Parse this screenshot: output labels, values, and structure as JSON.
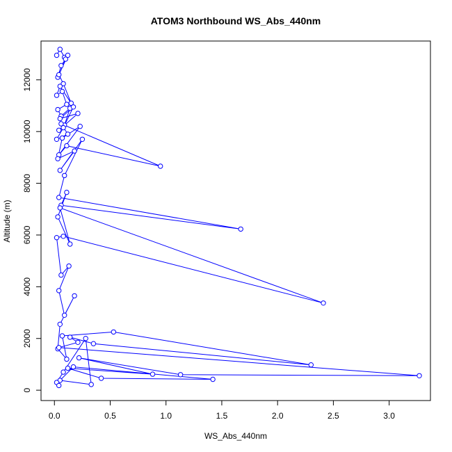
{
  "chart_data": {
    "type": "line",
    "title": "ATOM3 Northbound WS_Abs_440nm",
    "xlabel": "WS_Abs_440nm",
    "ylabel": "Altitude (m)",
    "xlim": [
      -0.12,
      3.37
    ],
    "ylim": [
      -400,
      13500
    ],
    "xticks": [
      "0.0",
      "0.5",
      "1.0",
      "1.5",
      "2.0",
      "2.5",
      "3.0"
    ],
    "xtick_values": [
      0,
      0.5,
      1,
      1.5,
      2,
      2.5,
      3
    ],
    "yticks": [
      "0",
      "2000",
      "4000",
      "6000",
      "8000",
      "10000",
      "12000"
    ],
    "ytick_values": [
      0,
      2000,
      4000,
      6000,
      8000,
      10000,
      12000
    ],
    "grid": false,
    "legend": "none",
    "marker": "open-circle",
    "series_color": "#0000ff",
    "series": [
      {
        "x": [
          0.02,
          0.05,
          0.09,
          0.12,
          0.03,
          0.06,
          0.1,
          0.04,
          0.08,
          0.15,
          0.05,
          0.02,
          0.07,
          0.11,
          0.03,
          0.06,
          0.14,
          0.09,
          0.04,
          0.21,
          0.05,
          0.17,
          0.08,
          0.02,
          0.12,
          0.06,
          0.95,
          0.11,
          0.04,
          0.23,
          0.07,
          0.03,
          0.18,
          0.05,
          0.25,
          0.09,
          0.04,
          1.67,
          0.06,
          0.11,
          0.03,
          0.14,
          0.05,
          2.41,
          0.08,
          0.02,
          0.06,
          0.13,
          0.04,
          0.09,
          0.18,
          0.05,
          0.03,
          0.11,
          0.07,
          0.53,
          2.3,
          0.35,
          0.14,
          0.21,
          0.04,
          3.27,
          1.13,
          0.22,
          0.88,
          0.12,
          0.42,
          1.42,
          0.17,
          0.05,
          0.33,
          0.28,
          0.08,
          0.02,
          0.04
        ],
        "y": [
          12950,
          13180,
          12870,
          12950,
          12100,
          12550,
          12800,
          12200,
          11850,
          11100,
          11750,
          11400,
          11550,
          11050,
          10850,
          10600,
          10900,
          10250,
          10050,
          10700,
          10500,
          10950,
          10150,
          9700,
          9900,
          10300,
          8660,
          9450,
          9100,
          10200,
          9750,
          8950,
          9250,
          8500,
          9700,
          8300,
          7450,
          6230,
          7150,
          7650,
          6700,
          5650,
          7050,
          3370,
          5950,
          5900,
          4450,
          4800,
          3850,
          2900,
          3650,
          2550,
          1600,
          1200,
          2100,
          2250,
          980,
          1800,
          2050,
          1850,
          1650,
          560,
          600,
          1250,
          620,
          850,
          460,
          420,
          900,
          380,
          220,
          2000,
          700,
          300,
          180
        ]
      }
    ]
  }
}
